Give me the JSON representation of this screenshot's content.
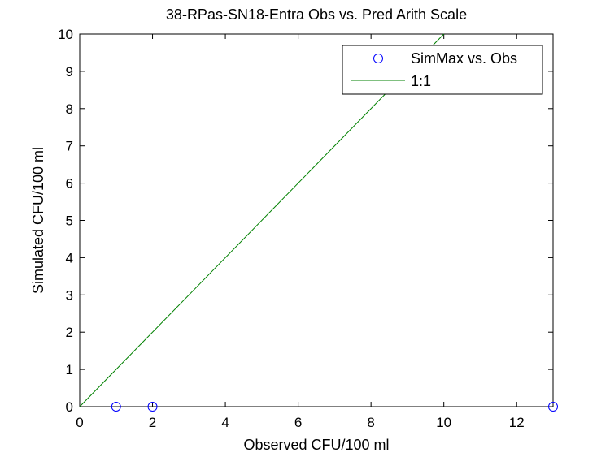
{
  "chart_data": {
    "type": "scatter",
    "title": "38-RPas-SN18-Entra Obs vs. Pred Arith Scale",
    "xlabel": "Observed CFU/100 ml",
    "ylabel": "Simulated CFU/100 ml",
    "xlim": [
      0,
      13
    ],
    "ylim": [
      0,
      10
    ],
    "xticks": [
      "0",
      "2",
      "4",
      "6",
      "8",
      "10",
      "12"
    ],
    "yticks": [
      "0",
      "1",
      "2",
      "3",
      "4",
      "5",
      "6",
      "7",
      "8",
      "9",
      "10"
    ],
    "grid": false,
    "legend_position": "top-right",
    "series": [
      {
        "name": "SimMax vs. Obs",
        "kind": "scatter",
        "marker": "open-circle",
        "color": "#0000ff",
        "points": [
          {
            "x": 1,
            "y": 0
          },
          {
            "x": 2,
            "y": 0
          },
          {
            "x": 13,
            "y": 0
          }
        ]
      },
      {
        "name": "1:1",
        "kind": "line",
        "color": "#008000",
        "points": [
          {
            "x": 0,
            "y": 0
          },
          {
            "x": 10,
            "y": 10
          }
        ]
      }
    ]
  }
}
